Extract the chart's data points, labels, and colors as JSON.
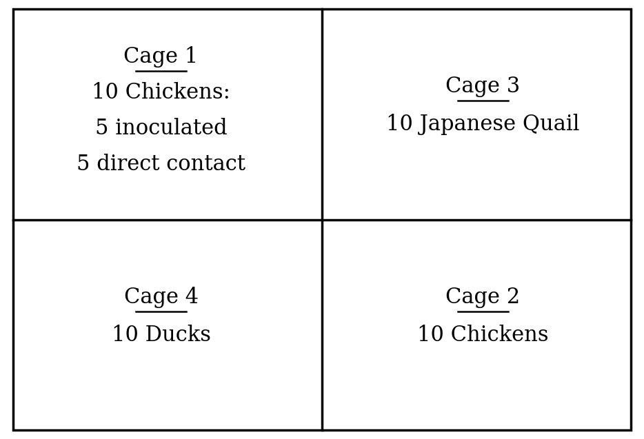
{
  "background_color": "#ffffff",
  "border_color": "#000000",
  "border_linewidth": 2.5,
  "cells": [
    {
      "id": "cage1",
      "col": 0,
      "row": 0,
      "title": "Cage 1",
      "lines": [
        "10 Chickens:",
        "5 inoculated",
        "5 direct contact"
      ],
      "title_fontsize": 22,
      "text_fontsize": 22,
      "title_ny": 0.72,
      "lines_ny": [
        0.55,
        0.38,
        0.21
      ]
    },
    {
      "id": "cage3",
      "col": 1,
      "row": 0,
      "title": "Cage 3",
      "lines": [
        "10 Japanese Quail"
      ],
      "title_fontsize": 22,
      "text_fontsize": 22,
      "title_ny": 0.58,
      "lines_ny": [
        0.4
      ]
    },
    {
      "id": "cage4",
      "col": 0,
      "row": 1,
      "title": "Cage 4",
      "lines": [
        "10 Ducks"
      ],
      "title_fontsize": 22,
      "text_fontsize": 22,
      "title_ny": 0.58,
      "lines_ny": [
        0.4
      ]
    },
    {
      "id": "cage2",
      "col": 1,
      "row": 1,
      "title": "Cage 2",
      "lines": [
        "10 Chickens"
      ],
      "title_fontsize": 22,
      "text_fontsize": 22,
      "title_ny": 0.58,
      "lines_ny": [
        0.4
      ]
    }
  ],
  "fig_width": 9.34,
  "fig_height": 6.37
}
